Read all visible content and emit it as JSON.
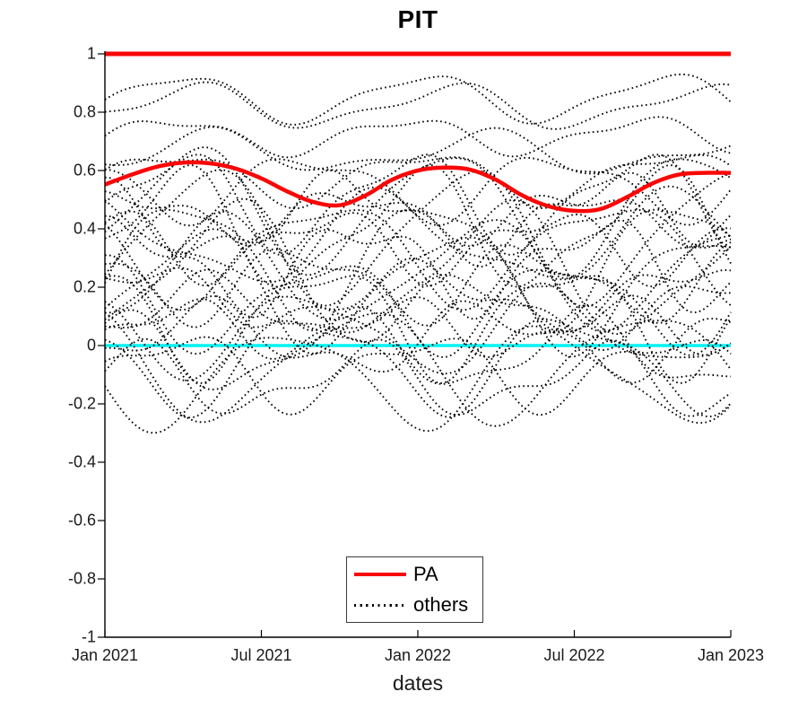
{
  "title": "PIT",
  "xlabel": "dates",
  "colors": {
    "pa_red": "#fa0606",
    "zero_cyan": "#00f2f2",
    "others_black": "#000000",
    "axis": "#000000",
    "text": "#1a1a1a"
  },
  "legend": {
    "items": [
      {
        "label": "PA",
        "style": "solid",
        "color": "#fa0606"
      },
      {
        "label": "others",
        "style": "dotted",
        "color": "#000000"
      }
    ]
  },
  "axes": {
    "ylim": [
      -1,
      1
    ],
    "xlim_months": [
      0,
      24
    ],
    "y_ticks": [
      {
        "label": "1",
        "value": 1
      },
      {
        "label": "0.8",
        "value": 0.8
      },
      {
        "label": "0.6",
        "value": 0.6
      },
      {
        "label": "0.4",
        "value": 0.4
      },
      {
        "label": "0.2",
        "value": 0.2
      },
      {
        "label": "0",
        "value": 0
      },
      {
        "label": "-0.2",
        "value": -0.2
      },
      {
        "label": "-0.4",
        "value": -0.4
      },
      {
        "label": "-0.6",
        "value": -0.6
      },
      {
        "label": "-0.8",
        "value": -0.8
      },
      {
        "label": "-1",
        "value": -1
      }
    ],
    "x_ticks": [
      {
        "label": "Jan 2021",
        "value": 0
      },
      {
        "label": "Jul 2021",
        "value": 6
      },
      {
        "label": "Jan 2022",
        "value": 12
      },
      {
        "label": "Jul 2022",
        "value": 18
      },
      {
        "label": "Jan 2023",
        "value": 24
      }
    ],
    "grid": false,
    "box": false,
    "legend_position": "south-center-inside"
  },
  "chart_data": {
    "type": "line",
    "title": "PIT",
    "xlabel": "dates",
    "x_unit": "months since Jan 2021",
    "x_range": [
      0,
      24
    ],
    "ylim": [
      -1,
      1
    ],
    "series": [
      {
        "name": "upper-bound-line",
        "color": "#fa0606",
        "style": "solid",
        "width": 5,
        "constant_value": 1
      },
      {
        "name": "PA",
        "color": "#fa0606",
        "style": "solid",
        "width": 4.5,
        "x_months": [
          0,
          1,
          2,
          3,
          4,
          5,
          6,
          7,
          8,
          9,
          10,
          11,
          12,
          13,
          14,
          15,
          16,
          17,
          18,
          19,
          20,
          21,
          22,
          23,
          24
        ],
        "values": [
          0.552,
          0.585,
          0.613,
          0.627,
          0.625,
          0.607,
          0.573,
          0.528,
          0.492,
          0.481,
          0.515,
          0.568,
          0.6,
          0.61,
          0.603,
          0.568,
          0.515,
          0.478,
          0.462,
          0.468,
          0.508,
          0.556,
          0.586,
          0.592,
          0.592
        ]
      },
      {
        "name": "zero-line",
        "color": "#00f2f2",
        "style": "solid",
        "width": 3.5,
        "constant_value": 0
      },
      {
        "name": "others",
        "color": "#000000",
        "style": "dotted",
        "width": 1.9,
        "count": 34,
        "params_format": "[base, amp1, period1_months, phase1, amp2, period2_months, phase2] ; y(t)=base+amp1*sin(2*pi*t/period1+phase1)+amp2*sin(2*pi*t/period2+phase2)",
        "params": [
          [
            0.85,
            0.075,
            9.3,
            -0.35,
            0.02,
            4.5,
            1.2
          ],
          [
            0.82,
            0.065,
            9.8,
            -0.55,
            0.025,
            5.0,
            2.5
          ],
          [
            0.72,
            0.055,
            9.0,
            -0.2,
            0.02,
            4.2,
            0.5
          ],
          [
            0.66,
            0.06,
            10.5,
            -0.8,
            0.03,
            5.5,
            3.0
          ],
          [
            0.58,
            0.08,
            9.6,
            -0.1,
            0.03,
            4.7,
            1.3
          ],
          [
            0.55,
            0.1,
            9.5,
            2.7,
            0.04,
            4.8,
            0.3
          ],
          [
            0.5,
            0.15,
            8.8,
            -0.4,
            0.05,
            4.4,
            1.8
          ],
          [
            0.47,
            0.2,
            9.6,
            -0.6,
            0.04,
            5.2,
            2.2
          ],
          [
            0.45,
            0.07,
            8.6,
            0.9,
            0.04,
            4.2,
            2.5
          ],
          [
            0.44,
            0.12,
            10.2,
            2.2,
            0.05,
            4.0,
            0.9
          ],
          [
            0.4,
            0.18,
            9.2,
            -0.3,
            0.06,
            4.6,
            2.8
          ],
          [
            0.38,
            0.22,
            9.9,
            -0.9,
            0.04,
            5.0,
            1.1
          ],
          [
            0.36,
            0.14,
            11.2,
            1.8,
            0.05,
            5.7,
            3.1
          ],
          [
            0.35,
            0.1,
            8.5,
            1.6,
            0.05,
            4.3,
            -0.6
          ],
          [
            0.33,
            0.16,
            10.8,
            2.9,
            0.05,
            5.4,
            1.5
          ],
          [
            0.3,
            0.2,
            9.4,
            -0.5,
            0.05,
            4.7,
            0.2
          ],
          [
            0.28,
            0.13,
            9.0,
            1.0,
            0.06,
            4.1,
            2.0
          ],
          [
            0.26,
            0.21,
            10.3,
            -1.4,
            0.05,
            5.2,
            0.8
          ],
          [
            0.25,
            0.17,
            10.0,
            -1.2,
            0.04,
            5.6,
            2.6
          ],
          [
            0.22,
            0.11,
            8.7,
            2.4,
            0.05,
            4.5,
            -0.3
          ],
          [
            0.2,
            0.19,
            9.7,
            -0.7,
            0.05,
            5.1,
            1.7
          ],
          [
            0.17,
            0.09,
            10.4,
            0.6,
            0.04,
            4.2,
            2.9
          ],
          [
            0.15,
            0.14,
            9.1,
            2.0,
            0.05,
            4.9,
            0.7
          ],
          [
            0.12,
            0.1,
            9.8,
            -1.0,
            0.04,
            4.4,
            2.3
          ],
          [
            0.1,
            0.17,
            9.2,
            2.1,
            0.06,
            4.6,
            -0.2
          ],
          [
            0.06,
            0.08,
            8.4,
            -0.6,
            0.04,
            4.1,
            1.6
          ],
          [
            0.05,
            0.13,
            9.3,
            2.6,
            0.04,
            5.3,
            1.0
          ],
          [
            0.02,
            0.1,
            10.6,
            -0.8,
            0.05,
            4.6,
            2.1
          ],
          [
            -0.02,
            0.12,
            9.0,
            1.3,
            0.04,
            4.3,
            -0.5
          ],
          [
            -0.05,
            0.15,
            9.9,
            2.8,
            0.05,
            5.0,
            0.4
          ],
          [
            -0.06,
            0.18,
            11.0,
            2.3,
            0.04,
            5.8,
            1.4
          ],
          [
            -0.08,
            0.11,
            9.5,
            -0.2,
            0.05,
            4.8,
            1.9
          ],
          [
            -0.1,
            0.16,
            10.1,
            3.5,
            0.04,
            5.5,
            2.7
          ],
          [
            -0.12,
            0.1,
            8.9,
            0.8,
            0.05,
            4.5,
            -0.9
          ]
        ]
      }
    ]
  }
}
